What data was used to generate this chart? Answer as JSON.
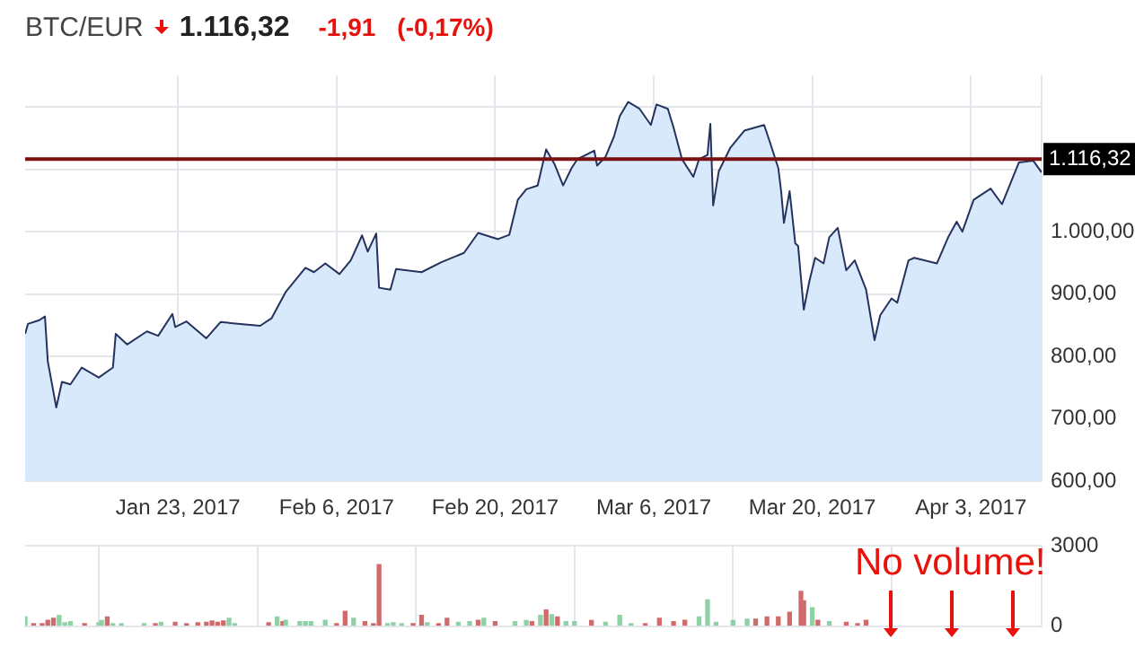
{
  "chart_data": [
    {
      "type": "area",
      "title": "BTC/EUR",
      "annotations": [
        "1.116,32",
        "-1,91",
        "(-0,17%)"
      ],
      "color": "#26325e",
      "x": [
        "2017-01-09T12:00",
        "2017-01-09T18:00",
        "2017-01-10T18:00",
        "2017-01-11T06:00",
        "2017-01-11T12:00",
        "2017-01-12T06:00",
        "2017-01-12T18:00",
        "2017-01-13T12:00",
        "2017-01-14T12:00",
        "2017-01-16T00:00",
        "2017-01-17T06:00",
        "2017-01-17T12:00",
        "2017-01-18T12:00",
        "2017-01-20T06:00",
        "2017-01-21T06:00",
        "2017-01-22T12:00",
        "2017-01-22T18:00",
        "2017-01-23T18:00",
        "2017-01-25T12:00",
        "2017-01-26T18:00",
        "2017-01-30T06:00",
        "2017-01-31T06:00",
        "2017-02-01T12:00",
        "2017-02-03T06:00",
        "2017-02-04T00:00",
        "2017-02-05T00:00",
        "2017-02-06T06:00",
        "2017-02-07T06:00",
        "2017-02-08T06:00",
        "2017-02-08T18:00",
        "2017-02-09T12:00",
        "2017-02-09T18:00",
        "2017-02-10T18:00",
        "2017-02-11T06:00",
        "2017-02-13T12:00",
        "2017-02-15T06:00",
        "2017-02-17T06:00",
        "2017-02-18T12:00",
        "2017-02-20T06:00",
        "2017-02-21T06:00",
        "2017-02-22T00:00",
        "2017-02-22T18:00",
        "2017-02-23T18:00",
        "2017-02-24T12:00",
        "2017-02-25T06:00",
        "2017-02-26T00:00",
        "2017-02-26T18:00",
        "2017-02-27T06:00",
        "2017-02-28T18:00",
        "2017-03-01T00:00",
        "2017-03-01T18:00",
        "2017-03-02T12:00",
        "2017-03-03T00:00",
        "2017-03-03T18:00",
        "2017-03-04T18:00",
        "2017-03-05T18:00",
        "2017-03-06T06:00",
        "2017-03-07T06:00",
        "2017-03-07T18:00",
        "2017-03-08T12:00",
        "2017-03-09T12:00",
        "2017-03-10T00:00",
        "2017-03-10T18:00",
        "2017-03-11T00:00",
        "2017-03-11T06:00",
        "2017-03-11T18:00",
        "2017-03-12T18:00",
        "2017-03-14T00:00",
        "2017-03-15T18:00",
        "2017-03-16T06:00",
        "2017-03-17T00:00",
        "2017-03-17T06:00",
        "2017-03-17T12:00",
        "2017-03-18T00:00",
        "2017-03-18T12:00",
        "2017-03-18T18:00",
        "2017-03-19T06:00",
        "2017-03-19T18:00",
        "2017-03-20T06:00",
        "2017-03-21T00:00",
        "2017-03-21T12:00",
        "2017-03-22T06:00",
        "2017-03-23T00:00",
        "2017-03-23T18:00",
        "2017-03-24T18:00",
        "2017-03-25T12:00",
        "2017-03-26T00:00",
        "2017-03-27T00:00",
        "2017-03-27T12:00",
        "2017-03-28T12:00",
        "2017-03-29T00:00",
        "2017-03-31T00:00",
        "2017-04-01T00:00",
        "2017-04-01T18:00",
        "2017-04-02T06:00",
        "2017-04-03T06:00",
        "2017-04-04T18:00",
        "2017-04-05T18:00",
        "2017-04-07T06:00",
        "2017-04-08T12:00",
        "2017-04-09T06:00"
      ],
      "values": [
        836,
        852,
        858,
        864,
        792,
        718,
        759,
        755,
        782,
        766,
        782,
        836,
        819,
        840,
        833,
        868,
        847,
        856,
        829,
        855,
        849,
        861,
        903,
        942,
        935,
        949,
        932,
        954,
        994,
        968,
        997,
        910,
        907,
        940,
        935,
        951,
        966,
        998,
        988,
        995,
        1051,
        1068,
        1074,
        1132,
        1108,
        1074,
        1102,
        1116,
        1130,
        1106,
        1120,
        1153,
        1185,
        1208,
        1197,
        1171,
        1204,
        1197,
        1167,
        1116,
        1088,
        1116,
        1123,
        1173,
        1042,
        1097,
        1134,
        1162,
        1171,
        1144,
        1102,
        1065,
        1014,
        1065,
        981,
        977,
        875,
        921,
        958,
        949,
        991,
        1006,
        938,
        954,
        907,
        826,
        866,
        893,
        886,
        954,
        958,
        949,
        991,
        1016,
        1000,
        1051,
        1069,
        1044,
        1111,
        1114,
        1095
      ],
      "xlim": [
        "2017-01-09T12:00",
        "2017-04-09T06:00"
      ],
      "xticks": [
        {
          "value": "2017-01-23",
          "label": "Jan 23, 2017"
        },
        {
          "value": "2017-02-06",
          "label": "Feb 6, 2017"
        },
        {
          "value": "2017-02-20",
          "label": "Feb 20, 2017"
        },
        {
          "value": "2017-03-06",
          "label": "Mar 6, 2017"
        },
        {
          "value": "2017-03-20",
          "label": "Mar 20, 2017"
        },
        {
          "value": "2017-04-03",
          "label": "Apr 3, 2017"
        }
      ],
      "ylim": [
        600,
        1250
      ],
      "yticks": [
        {
          "value": 600,
          "label": "600,00"
        },
        {
          "value": 700,
          "label": "700,00"
        },
        {
          "value": 800,
          "label": "800,00"
        },
        {
          "value": 900,
          "label": "900,00"
        },
        {
          "value": 1000,
          "label": "1.000,00"
        },
        {
          "value": 1100,
          "label": null
        },
        {
          "value": 1200,
          "label": null
        }
      ],
      "ref_lines": [
        {
          "axis": "y",
          "value": 1116.32,
          "label": "1.116,32",
          "color": "#7a1010"
        }
      ],
      "grid": true,
      "legend": false
    },
    {
      "type": "bar",
      "annotations": [
        "No volume!"
      ],
      "x": [
        "2017-01-09T12:00",
        "2017-01-10T06:00",
        "2017-01-11T00:00",
        "2017-01-11T12:00",
        "2017-01-12T00:00",
        "2017-01-12T12:00",
        "2017-01-13T00:00",
        "2017-01-13T12:00",
        "2017-01-14T18:00",
        "2017-01-16T00:00",
        "2017-01-16T06:00",
        "2017-01-16T18:00",
        "2017-01-17T06:00",
        "2017-01-18T00:00",
        "2017-01-20T00:00",
        "2017-01-21T00:00",
        "2017-01-21T12:00",
        "2017-01-22T18:00",
        "2017-01-23T18:00",
        "2017-01-24T18:00",
        "2017-01-25T12:00",
        "2017-01-26T00:00",
        "2017-01-26T12:00",
        "2017-01-27T00:00",
        "2017-01-27T12:00",
        "2017-01-28T00:00",
        "2017-01-31T00:00",
        "2017-01-31T18:00",
        "2017-02-01T06:00",
        "2017-02-01T12:00",
        "2017-02-02T18:00",
        "2017-02-03T06:00",
        "2017-02-03T18:00",
        "2017-02-05T00:00",
        "2017-02-06T00:00",
        "2017-02-06T18:00",
        "2017-02-07T12:00",
        "2017-02-08T12:00",
        "2017-02-09T06:00",
        "2017-02-09T18:00",
        "2017-02-10T12:00",
        "2017-02-11T00:00",
        "2017-02-11T18:00",
        "2017-02-12T18:00",
        "2017-02-13T12:00",
        "2017-02-14T00:00",
        "2017-02-15T00:00",
        "2017-02-15T18:00",
        "2017-02-16T18:00",
        "2017-02-17T18:00",
        "2017-02-18T12:00",
        "2017-02-19T00:00",
        "2017-02-20T00:00",
        "2017-02-21T18:00",
        "2017-02-22T18:00",
        "2017-02-23T06:00",
        "2017-02-24T00:00",
        "2017-02-24T12:00",
        "2017-02-25T00:00",
        "2017-02-25T12:00",
        "2017-02-26T06:00",
        "2017-02-27T00:00",
        "2017-02-28T12:00",
        "2017-03-01T18:00",
        "2017-03-03T00:00",
        "2017-03-04T00:00",
        "2017-03-05T06:00",
        "2017-03-06T12:00",
        "2017-03-07T18:00",
        "2017-03-08T18:00",
        "2017-03-10T00:00",
        "2017-03-10T18:00",
        "2017-03-11T12:00",
        "2017-03-13T00:00",
        "2017-03-14T06:00",
        "2017-03-15T00:00",
        "2017-03-16T00:00",
        "2017-03-17T00:00",
        "2017-03-18T00:00",
        "2017-03-19T00:00",
        "2017-03-19T06:00",
        "2017-03-20T00:00",
        "2017-03-20T12:00",
        "2017-03-21T12:00",
        "2017-03-23T00:00",
        "2017-03-24T00:00",
        "2017-03-24T18:00"
      ],
      "values": [
        340,
        90,
        90,
        220,
        290,
        400,
        120,
        170,
        90,
        120,
        210,
        340,
        90,
        90,
        90,
        90,
        140,
        140,
        90,
        120,
        140,
        190,
        140,
        190,
        290,
        90,
        120,
        340,
        170,
        220,
        170,
        170,
        170,
        220,
        90,
        550,
        290,
        170,
        90,
        2300,
        90,
        120,
        90,
        90,
        400,
        120,
        90,
        290,
        140,
        170,
        220,
        290,
        170,
        170,
        210,
        170,
        400,
        600,
        430,
        340,
        170,
        170,
        210,
        140,
        400,
        90,
        90,
        290,
        170,
        220,
        340,
        980,
        140,
        210,
        260,
        260,
        340,
        340,
        520,
        1300,
        950,
        690,
        220,
        170,
        140,
        90,
        220
      ],
      "colors": [
        "#8fd0a6",
        "#d06b6b",
        "#d06b6b",
        "#d06b6b",
        "#d06b6b",
        "#8fd0a6",
        "#8fd0a6",
        "#8fd0a6",
        "#d06b6b",
        "#8fd0a6",
        "#8fd0a6",
        "#d06b6b",
        "#8fd0a6",
        "#8fd0a6",
        "#8fd0a6",
        "#d06b6b",
        "#8fd0a6",
        "#d06b6b",
        "#d06b6b",
        "#d06b6b",
        "#d06b6b",
        "#d06b6b",
        "#d06b6b",
        "#d06b6b",
        "#8fd0a6",
        "#8fd0a6",
        "#d06b6b",
        "#8fd0a6",
        "#d06b6b",
        "#8fd0a6",
        "#8fd0a6",
        "#8fd0a6",
        "#8fd0a6",
        "#8fd0a6",
        "#d06b6b",
        "#d06b6b",
        "#8fd0a6",
        "#d06b6b",
        "#d06b6b",
        "#d06b6b",
        "#8fd0a6",
        "#8fd0a6",
        "#8fd0a6",
        "#d06b6b",
        "#d06b6b",
        "#8fd0a6",
        "#d06b6b",
        "#d06b6b",
        "#8fd0a6",
        "#8fd0a6",
        "#d06b6b",
        "#8fd0a6",
        "#d06b6b",
        "#8fd0a6",
        "#8fd0a6",
        "#d06b6b",
        "#8fd0a6",
        "#d06b6b",
        "#8fd0a6",
        "#d06b6b",
        "#8fd0a6",
        "#8fd0a6",
        "#d06b6b",
        "#8fd0a6",
        "#8fd0a6",
        "#8fd0a6",
        "#d06b6b",
        "#d06b6b",
        "#d06b6b",
        "#d06b6b",
        "#8fd0a6",
        "#8fd0a6",
        "#8fd0a6",
        "#8fd0a6",
        "#8fd0a6",
        "#d06b6b",
        "#d06b6b",
        "#d06b6b",
        "#d06b6b",
        "#d06b6b",
        "#d06b6b",
        "#8fd0a6",
        "#d06b6b",
        "#8fd0a6",
        "#d06b6b",
        "#d06b6b",
        "#d06b6b"
      ],
      "xlim": [
        "2017-01-09T12:00",
        "2017-04-09T06:00"
      ],
      "xticks": [
        {
          "value": "2017-01-23",
          "label": null
        },
        {
          "value": "2017-02-06",
          "label": null
        },
        {
          "value": "2017-02-20",
          "label": null
        },
        {
          "value": "2017-03-06",
          "label": null
        },
        {
          "value": "2017-03-20",
          "label": null
        },
        {
          "value": "2017-04-03",
          "label": null
        }
      ],
      "ylim": [
        0,
        3000
      ],
      "yticks": [
        0,
        3000
      ],
      "tick_labels": "y",
      "grid": true,
      "legend": false
    }
  ]
}
